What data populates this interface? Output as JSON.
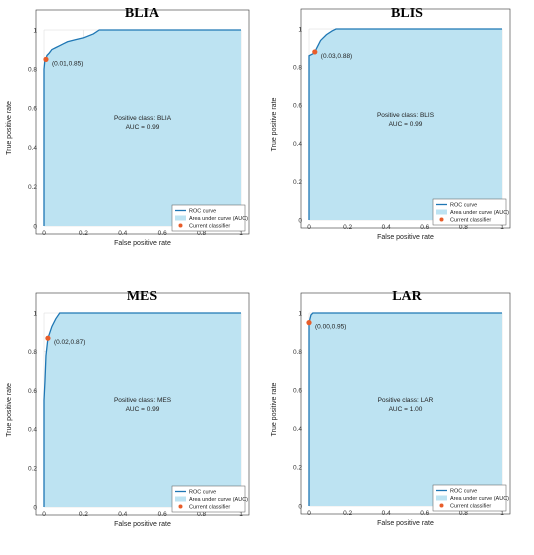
{
  "figure": {
    "colors": {
      "roc": "#1f77b4",
      "auc_fill": "#bde3f2",
      "point": "#e85d2a",
      "grid": "#d8d8d8",
      "axis": "#333333"
    },
    "legend": {
      "placement": "bottom-right",
      "roc": "ROC curve",
      "auc": "Area under curve (AUC)",
      "point": "Current classifier"
    }
  },
  "chart_data": [
    {
      "type": "line",
      "title": "BLIA",
      "xlabel": "False positive rate",
      "ylabel": "True positive rate",
      "xlim": [
        0,
        1
      ],
      "ylim": [
        0,
        1
      ],
      "xticks": [
        "0",
        "0.2",
        "0.4",
        "0.6",
        "0.8",
        "1"
      ],
      "yticks": [
        "0",
        "0.2",
        "0.4",
        "0.6",
        "0.8",
        "1"
      ],
      "grid": true,
      "roc": [
        [
          0,
          0
        ],
        [
          0,
          0.8
        ],
        [
          0.005,
          0.85
        ],
        [
          0.01,
          0.85
        ],
        [
          0.015,
          0.87
        ],
        [
          0.025,
          0.88
        ],
        [
          0.04,
          0.9
        ],
        [
          0.06,
          0.91
        ],
        [
          0.08,
          0.92
        ],
        [
          0.1,
          0.93
        ],
        [
          0.12,
          0.94
        ],
        [
          0.16,
          0.95
        ],
        [
          0.2,
          0.96
        ],
        [
          0.25,
          0.98
        ],
        [
          0.28,
          1.0
        ],
        [
          1,
          1
        ]
      ],
      "point": {
        "x": 0.01,
        "y": 0.85,
        "label": "(0.01,0.85)"
      },
      "positive_class": "Positive class: BLIA",
      "auc": "AUC = 0.99"
    },
    {
      "type": "line",
      "title": "BLIS",
      "xlabel": "False positive rate",
      "ylabel": "True positive rate",
      "xlim": [
        0,
        1
      ],
      "ylim": [
        0,
        1
      ],
      "xticks": [
        "0",
        "0.2",
        "0.4",
        "0.6",
        "0.8",
        "1"
      ],
      "yticks": [
        "0",
        "0.2",
        "0.4",
        "0.6",
        "0.8",
        "1"
      ],
      "grid": true,
      "roc": [
        [
          0,
          0
        ],
        [
          0,
          0.86
        ],
        [
          0.02,
          0.87
        ],
        [
          0.03,
          0.88
        ],
        [
          0.04,
          0.9
        ],
        [
          0.06,
          0.94
        ],
        [
          0.09,
          0.97
        ],
        [
          0.12,
          0.99
        ],
        [
          0.14,
          1.0
        ],
        [
          1,
          1
        ]
      ],
      "point": {
        "x": 0.03,
        "y": 0.88,
        "label": "(0.03,0.88)"
      },
      "positive_class": "Positive class: BLIS",
      "auc": "AUC = 0.99"
    },
    {
      "type": "line",
      "title": "MES",
      "xlabel": "False positive rate",
      "ylabel": "True positive rate",
      "xlim": [
        0,
        1
      ],
      "ylim": [
        0,
        1
      ],
      "xticks": [
        "0",
        "0.2",
        "0.4",
        "0.6",
        "0.8",
        "1"
      ],
      "yticks": [
        "0",
        "0.2",
        "0.4",
        "0.6",
        "0.8",
        "1"
      ],
      "grid": true,
      "roc": [
        [
          0,
          0
        ],
        [
          0,
          0.55
        ],
        [
          0.005,
          0.65
        ],
        [
          0.01,
          0.78
        ],
        [
          0.02,
          0.87
        ],
        [
          0.03,
          0.9
        ],
        [
          0.04,
          0.93
        ],
        [
          0.06,
          0.97
        ],
        [
          0.08,
          1.0
        ],
        [
          1,
          1
        ]
      ],
      "point": {
        "x": 0.02,
        "y": 0.87,
        "label": "(0.02,0.87)"
      },
      "positive_class": "Positive class: MES",
      "auc": "AUC = 0.99"
    },
    {
      "type": "line",
      "title": "LAR",
      "xlabel": "False positive rate",
      "ylabel": "True positive rate",
      "xlim": [
        0,
        1
      ],
      "ylim": [
        0,
        1
      ],
      "xticks": [
        "0",
        "0.2",
        "0.4",
        "0.6",
        "0.8",
        "1"
      ],
      "yticks": [
        "0",
        "0.2",
        "0.4",
        "0.6",
        "0.8",
        "1"
      ],
      "grid": true,
      "roc": [
        [
          0,
          0
        ],
        [
          0,
          0.95
        ],
        [
          0.005,
          0.97
        ],
        [
          0.01,
          0.99
        ],
        [
          0.02,
          1.0
        ],
        [
          1,
          1
        ]
      ],
      "point": {
        "x": 0.0,
        "y": 0.95,
        "label": "(0.00,0.95)"
      },
      "positive_class": "Positive class: LAR",
      "auc": "AUC = 1.00"
    }
  ]
}
